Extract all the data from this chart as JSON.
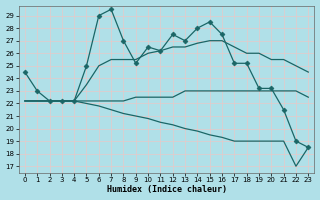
{
  "xlabel": "Humidex (Indice chaleur)",
  "bg_color": "#b0e0e8",
  "grid_color": "#d0eeee",
  "line_color": "#1a6666",
  "xlim": [
    -0.5,
    23.5
  ],
  "ylim": [
    16.5,
    29.8
  ],
  "yticks": [
    17,
    18,
    19,
    20,
    21,
    22,
    23,
    24,
    25,
    26,
    27,
    28,
    29
  ],
  "xticks": [
    0,
    1,
    2,
    3,
    4,
    5,
    6,
    7,
    8,
    9,
    10,
    11,
    12,
    13,
    14,
    15,
    16,
    17,
    18,
    19,
    20,
    21,
    22,
    23
  ],
  "lines": [
    {
      "x": [
        0,
        1,
        2,
        3,
        4,
        5,
        6,
        7,
        8,
        9,
        10,
        11,
        12,
        13,
        14,
        15,
        16,
        17,
        18,
        19,
        20,
        21,
        22,
        23
      ],
      "y": [
        24.5,
        23,
        22.2,
        22.2,
        22.2,
        25,
        29,
        29.5,
        27,
        25.2,
        26.5,
        26.2,
        27.5,
        27,
        28,
        28.5,
        27.5,
        25.2,
        25.2,
        23.2,
        23.2,
        21.5,
        19,
        18.5
      ],
      "marker": "D",
      "markersize": 2.5,
      "lw": 0.9
    },
    {
      "x": [
        0,
        1,
        2,
        3,
        4,
        5,
        6,
        7,
        8,
        9,
        10,
        11,
        12,
        13,
        14,
        15,
        16,
        17,
        18,
        19,
        20,
        21,
        22,
        23
      ],
      "y": [
        22.2,
        22.2,
        22.2,
        22.2,
        22.2,
        23.5,
        25,
        25.5,
        25.5,
        25.5,
        26,
        26.2,
        26.5,
        26.5,
        26.8,
        27,
        27,
        26.5,
        26,
        26,
        25.5,
        25.5,
        25,
        24.5
      ],
      "marker": null,
      "markersize": 0,
      "lw": 0.9
    },
    {
      "x": [
        0,
        1,
        2,
        3,
        4,
        5,
        6,
        7,
        8,
        9,
        10,
        11,
        12,
        13,
        14,
        15,
        16,
        17,
        18,
        19,
        20,
        21,
        22,
        23
      ],
      "y": [
        22.2,
        22.2,
        22.2,
        22.2,
        22.2,
        22.2,
        22.2,
        22.2,
        22.2,
        22.5,
        22.5,
        22.5,
        22.5,
        23,
        23,
        23,
        23,
        23,
        23,
        23,
        23,
        23,
        23,
        22.5
      ],
      "marker": null,
      "markersize": 0,
      "lw": 0.9
    },
    {
      "x": [
        0,
        1,
        2,
        3,
        4,
        5,
        6,
        7,
        8,
        9,
        10,
        11,
        12,
        13,
        14,
        15,
        16,
        17,
        18,
        19,
        20,
        21,
        22,
        23
      ],
      "y": [
        22.2,
        22.2,
        22.2,
        22.2,
        22.2,
        22.0,
        21.8,
        21.5,
        21.2,
        21.0,
        20.8,
        20.5,
        20.3,
        20.0,
        19.8,
        19.5,
        19.3,
        19.0,
        19.0,
        19.0,
        19.0,
        19.0,
        17.0,
        18.5
      ],
      "marker": null,
      "markersize": 0,
      "lw": 0.9
    }
  ]
}
